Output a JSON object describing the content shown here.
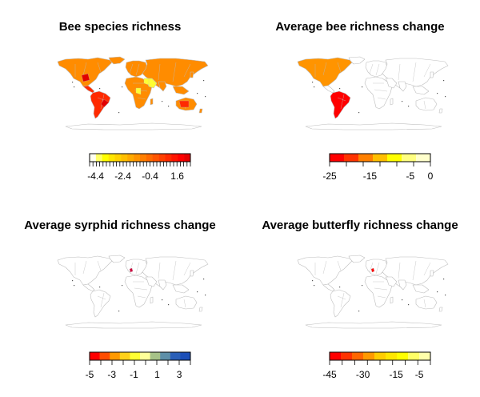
{
  "panels": [
    {
      "title": "Bee species richness",
      "legend_colors": [
        "#fffff0",
        "#ffff66",
        "#ffff00",
        "#ffe600",
        "#ffd200",
        "#ffbf00",
        "#ffaa00",
        "#ff9400",
        "#ff7f00",
        "#ff6a00",
        "#ff5500",
        "#ff4000",
        "#ff2a00",
        "#ff1500",
        "#ff0000",
        "#e60000"
      ],
      "legend_tick_count": 30,
      "legend_labels": [
        "-4.4",
        "-2.4",
        "-0.4",
        "1.6"
      ],
      "legend_label_pos": [
        0.06,
        0.33,
        0.6,
        0.87
      ],
      "map_fill": "richness"
    },
    {
      "title": "Average bee richness change",
      "legend_colors": [
        "#ff0000",
        "#ff3300",
        "#ff8000",
        "#ffbf00",
        "#ffff00",
        "#ffff80",
        "#ffffcc"
      ],
      "legend_tick_count": 6,
      "legend_labels": [
        "-25",
        "-15",
        "-5",
        "0"
      ],
      "legend_label_pos": [
        0.0,
        0.4,
        0.8,
        1.0
      ],
      "map_fill": "bee_change"
    },
    {
      "title": "Average syrphid richness change",
      "legend_colors": [
        "#ff0000",
        "#ff4d00",
        "#ff9900",
        "#ffd11a",
        "#ffff33",
        "#ffff99",
        "#a6c288",
        "#5e8fa8",
        "#2a5fb8",
        "#1c4fb8"
      ],
      "legend_tick_count": 9,
      "legend_labels": [
        "-5",
        "-3",
        "-1",
        "1",
        "3"
      ],
      "legend_label_pos": [
        0.0,
        0.22,
        0.44,
        0.67,
        0.89
      ],
      "map_fill": "syrphid_change"
    },
    {
      "title": "Average butterfly richness change",
      "legend_colors": [
        "#ff0000",
        "#ff3300",
        "#ff6600",
        "#ff9900",
        "#ffcc00",
        "#ffe600",
        "#ffff00",
        "#ffff66",
        "#ffffaa"
      ],
      "legend_tick_count": 8,
      "legend_labels": [
        "-45",
        "-30",
        "-15",
        "-5"
      ],
      "legend_label_pos": [
        0.0,
        0.33,
        0.66,
        0.89
      ],
      "map_fill": "butterfly_change"
    }
  ],
  "colors": {
    "border": "#bdbdbd",
    "richness_base": "#ff8c00",
    "richness_red": "#ff2a00",
    "richness_dark": "#e10000",
    "richness_yellow": "#ffff33",
    "bee_orange": "#ff9400",
    "bee_red": "#ff0000",
    "syrphid_spot": "#d0003c",
    "butterfly_spot": "#ff0000"
  }
}
